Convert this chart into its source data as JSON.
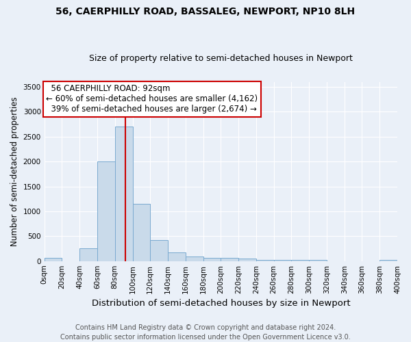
{
  "title": "56, CAERPHILLY ROAD, BASSALEG, NEWPORT, NP10 8LH",
  "subtitle": "Size of property relative to semi-detached houses in Newport",
  "xlabel": "Distribution of semi-detached houses by size in Newport",
  "ylabel": "Number of semi-detached properties",
  "bar_edges": [
    0,
    20,
    40,
    60,
    80,
    100,
    120,
    140,
    160,
    180,
    200,
    220,
    240,
    260,
    280,
    300,
    320,
    340,
    360,
    380,
    400
  ],
  "bar_heights": [
    60,
    0,
    260,
    2000,
    2700,
    1150,
    420,
    170,
    100,
    60,
    60,
    50,
    30,
    30,
    30,
    30,
    0,
    0,
    0,
    30
  ],
  "bar_color": "#c9daea",
  "bar_edge_color": "#7aaad0",
  "property_size": 92,
  "property_label": "56 CAERPHILLY ROAD: 92sqm",
  "pct_smaller": 60,
  "pct_smaller_n": "4,162",
  "pct_larger": 39,
  "pct_larger_n": "2,674",
  "annotation_box_color": "#ffffff",
  "annotation_box_edge": "#cc0000",
  "vline_color": "#cc0000",
  "ylim": [
    0,
    3600
  ],
  "yticks": [
    0,
    500,
    1000,
    1500,
    2000,
    2500,
    3000,
    3500
  ],
  "footer1": "Contains HM Land Registry data © Crown copyright and database right 2024.",
  "footer2": "Contains public sector information licensed under the Open Government Licence v3.0.",
  "bg_color": "#eaf0f8",
  "plot_bg_color": "#eaf0f8",
  "grid_color": "#ffffff",
  "title_fontsize": 10,
  "subtitle_fontsize": 9,
  "xlabel_fontsize": 9.5,
  "ylabel_fontsize": 8.5,
  "tick_fontsize": 7.5,
  "annotation_fontsize": 8.5,
  "footer_fontsize": 7
}
